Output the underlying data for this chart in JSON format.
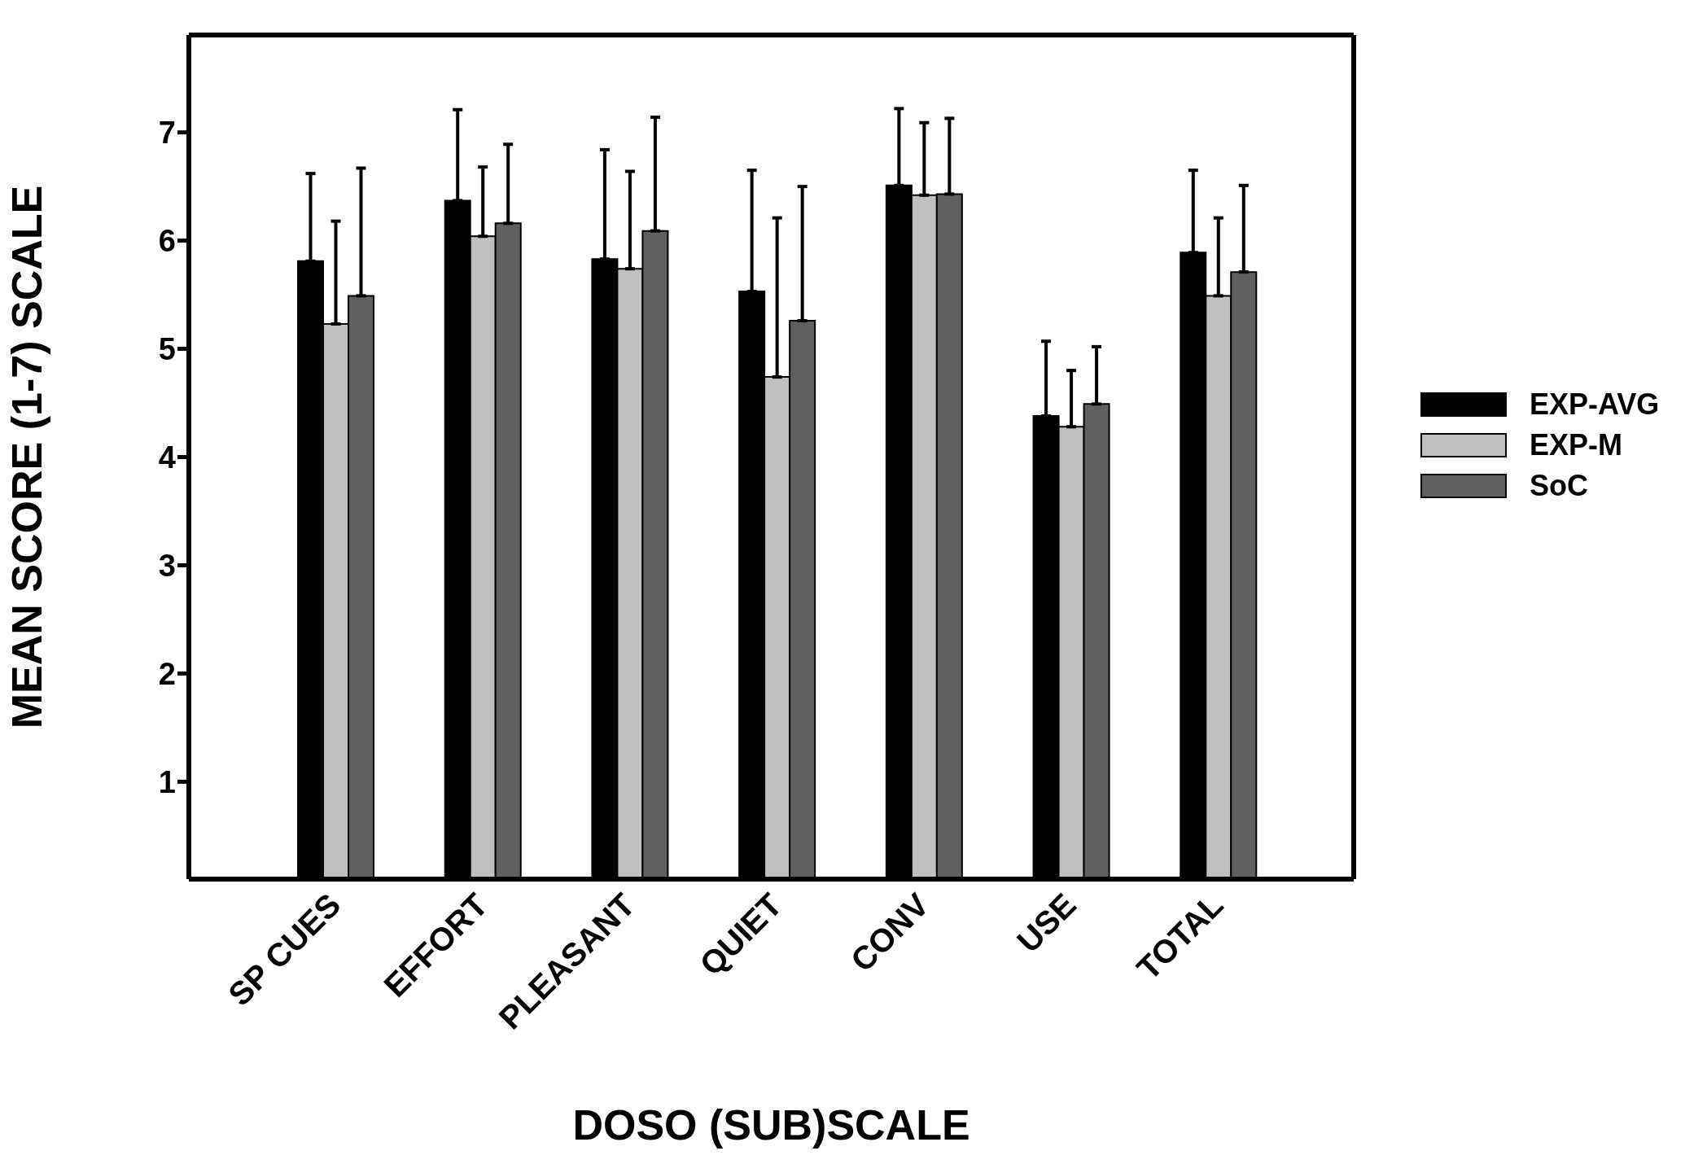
{
  "chart_data": {
    "type": "bar",
    "xlabel": "DOSO (SUB)SCALE",
    "ylabel": "MEAN SCORE (1-7) SCALE",
    "categories": [
      "SP CUES",
      "EFFORT",
      "PLEASANT",
      "QUIET",
      "CONV",
      "USE",
      "TOTAL"
    ],
    "series": [
      {
        "name": "EXP-AVG",
        "color": "#000000",
        "values": [
          5.81,
          6.37,
          5.83,
          5.53,
          6.51,
          4.38,
          5.89
        ],
        "errors": [
          [
            5.81,
            6.62
          ],
          [
            6.37,
            7.21
          ],
          [
            5.83,
            6.84
          ],
          [
            5.53,
            6.65
          ],
          [
            6.51,
            7.22
          ],
          [
            4.38,
            5.07
          ],
          [
            5.89,
            6.65
          ]
        ]
      },
      {
        "name": "EXP-M",
        "color": "#c0c0c0",
        "values": [
          5.23,
          6.04,
          5.74,
          4.74,
          6.42,
          4.28,
          5.49
        ],
        "errors": [
          [
            5.23,
            6.18
          ],
          [
            6.04,
            6.68
          ],
          [
            5.74,
            6.64
          ],
          [
            4.74,
            6.21
          ],
          [
            6.42,
            7.09
          ],
          [
            4.28,
            4.8
          ],
          [
            5.49,
            6.21
          ]
        ]
      },
      {
        "name": "SoC",
        "color": "#606060",
        "values": [
          5.49,
          6.16,
          6.09,
          5.26,
          6.43,
          4.49,
          5.71
        ],
        "errors": [
          [
            5.49,
            6.67
          ],
          [
            6.16,
            6.89
          ],
          [
            6.09,
            7.14
          ],
          [
            5.26,
            6.5
          ],
          [
            6.43,
            7.13
          ],
          [
            4.49,
            5.02
          ],
          [
            5.71,
            6.51
          ]
        ]
      }
    ],
    "ylim": [
      0.1,
      7.9
    ],
    "yticks": [
      1,
      2,
      3,
      4,
      5,
      6,
      7
    ],
    "grid": false,
    "legend": "right"
  }
}
